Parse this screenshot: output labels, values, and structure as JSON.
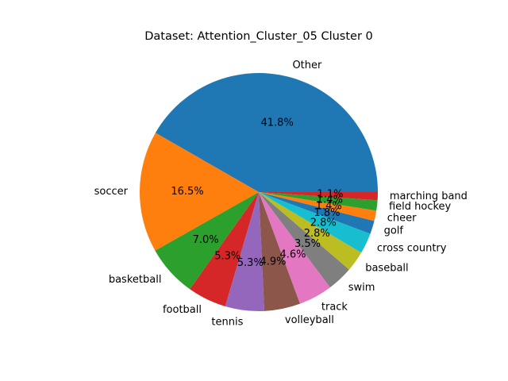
{
  "chart_data": {
    "type": "pie",
    "title": "Dataset: Attention_Cluster_05 Cluster 0",
    "categories": [
      "Other",
      "soccer",
      "basketball",
      "football",
      "tennis",
      "volleyball",
      "track",
      "swim",
      "baseball",
      "cross country",
      "golf",
      "cheer",
      "field hockey",
      "marching band"
    ],
    "values": [
      41.8,
      16.5,
      7.0,
      5.3,
      5.3,
      4.9,
      4.6,
      3.5,
      2.8,
      2.8,
      1.8,
      1.4,
      1.4,
      1.1
    ],
    "percent_labels": [
      "41.8%",
      "16.5%",
      "7.0%",
      "5.3%",
      "5.3%",
      "4.9%",
      "4.6%",
      "3.5%",
      "2.8%",
      "2.8%",
      "1.8%",
      "1.4%",
      "1.4%",
      "1.1%"
    ],
    "colors": [
      "#1f77b4",
      "#ff7f0e",
      "#2ca02c",
      "#d62728",
      "#9467bd",
      "#8c564b",
      "#e377c2",
      "#7f7f7f",
      "#bcbd22",
      "#17becf",
      "#1f77b4",
      "#ff7f0e",
      "#2ca02c",
      "#d62728"
    ],
    "start_angle_deg": 0,
    "direction": "counterclockwise"
  }
}
